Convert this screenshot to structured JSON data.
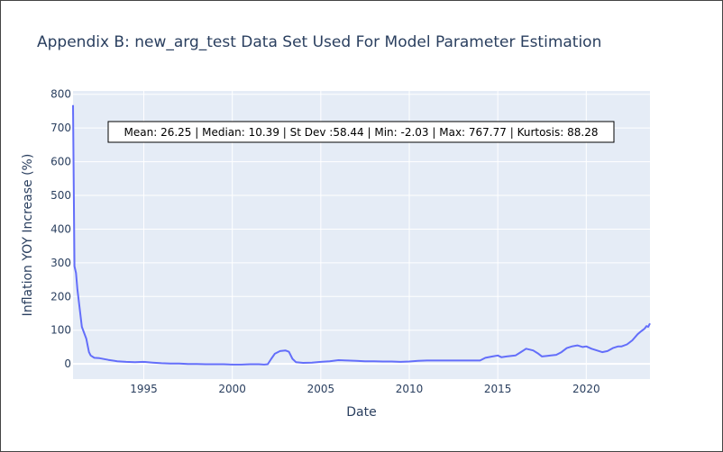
{
  "chart_data": {
    "type": "line",
    "title": "Appendix B: new_arg_test Data Set Used For Model Parameter Estimation",
    "xlabel": "Date",
    "ylabel": "Inflation YOY Increase (%)",
    "xlim": [
      1991.0,
      2023.6
    ],
    "ylim": [
      -45,
      810
    ],
    "x_ticks": [
      1995,
      2000,
      2005,
      2010,
      2015,
      2020
    ],
    "y_ticks": [
      0,
      100,
      200,
      300,
      400,
      500,
      600,
      700,
      800
    ],
    "grid": true,
    "annotation": "Mean: 26.25 | Median: 10.39 | St Dev :58.44 | Min: -2.03 | Max: 767.77 | Kurtosis: 88.28",
    "series": [
      {
        "color": "#636efa",
        "x": [
          1991.0,
          1991.08,
          1991.17,
          1991.25,
          1991.5,
          1991.75,
          1991.9,
          1992.0,
          1992.2,
          1992.5,
          1993.0,
          1993.5,
          1994.0,
          1994.5,
          1995.0,
          1995.5,
          1996.0,
          1996.5,
          1997.0,
          1997.5,
          1998.0,
          1998.5,
          1999.0,
          1999.5,
          2000.0,
          2000.5,
          2001.0,
          2001.5,
          2001.8,
          2002.0,
          2002.2,
          2002.4,
          2002.7,
          2003.0,
          2003.2,
          2003.4,
          2003.6,
          2004.0,
          2004.5,
          2005.0,
          2005.5,
          2006.0,
          2006.5,
          2007.0,
          2007.5,
          2008.0,
          2008.5,
          2009.0,
          2009.5,
          2010.0,
          2010.5,
          2011.0,
          2011.5,
          2012.0,
          2012.5,
          2013.0,
          2013.5,
          2014.0,
          2014.3,
          2014.7,
          2015.0,
          2015.2,
          2015.5,
          2016.0,
          2016.3,
          2016.6,
          2017.0,
          2017.3,
          2017.5,
          2017.8,
          2018.0,
          2018.3,
          2018.6,
          2018.9,
          2019.2,
          2019.5,
          2019.8,
          2020.0,
          2020.3,
          2020.6,
          2020.9,
          2021.2,
          2021.5,
          2021.8,
          2022.0,
          2022.3,
          2022.6,
          2022.9,
          2023.1,
          2023.3,
          2023.4,
          2023.5,
          2023.6
        ],
        "y": [
          767.77,
          290,
          270,
          220,
          110,
          75,
          35,
          25,
          18,
          17,
          12,
          8,
          6,
          5,
          6,
          4,
          2,
          1,
          1,
          0,
          0,
          -1,
          -1,
          -1,
          -2,
          -2,
          -1,
          -1,
          -2,
          -1,
          15,
          30,
          38,
          40,
          36,
          15,
          5,
          3,
          4,
          6,
          8,
          11,
          10,
          9,
          8,
          8,
          7,
          7,
          6,
          7,
          9,
          10,
          10,
          10,
          10,
          10,
          10,
          10,
          18,
          22,
          25,
          20,
          22,
          25,
          35,
          45,
          40,
          30,
          22,
          24,
          25,
          27,
          35,
          47,
          52,
          55,
          50,
          52,
          45,
          40,
          35,
          38,
          47,
          52,
          52,
          58,
          70,
          88,
          97,
          105,
          112,
          110,
          120
        ]
      }
    ]
  }
}
